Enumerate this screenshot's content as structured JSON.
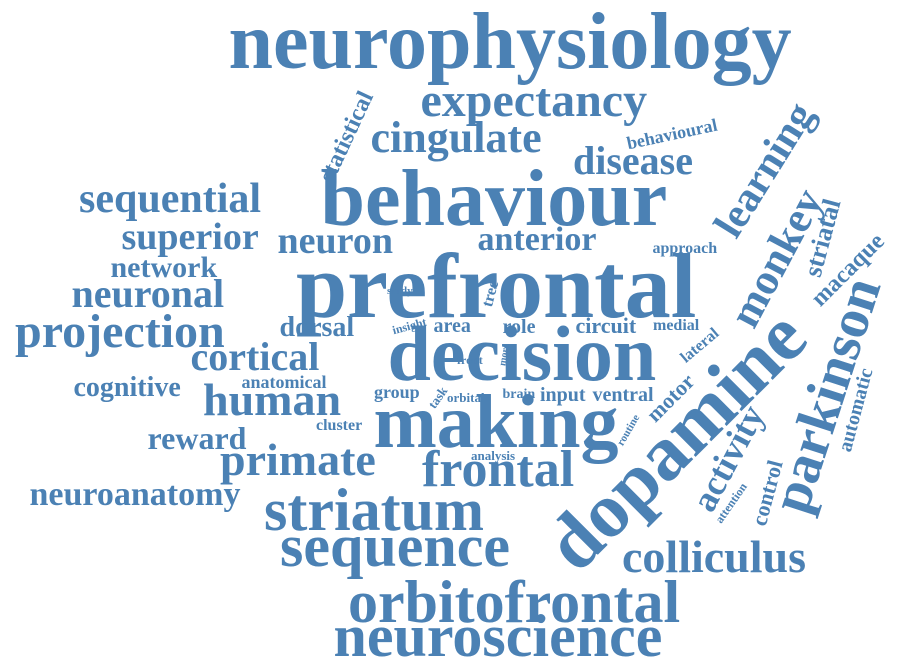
{
  "word_cloud": {
    "color": "#4b81b4",
    "words": [
      "neurophysiology",
      "expectancy",
      "statistical",
      "cingulate",
      "behavioural",
      "disease",
      "learning",
      "behaviour",
      "sequential",
      "monkey",
      "superior",
      "neuron",
      "anterior",
      "approach",
      "striatal",
      "network",
      "prefrontal",
      "macaque",
      "neuronal",
      "study",
      "tree",
      "projection",
      "dorsal",
      "insight",
      "area",
      "role",
      "circuit",
      "medial",
      "decision",
      "parkinson",
      "cortical",
      "front",
      "more",
      "lateral",
      "cognitive",
      "anatomical",
      "group",
      "task",
      "orbital",
      "brain",
      "input",
      "ventral",
      "dopamine",
      "automatic",
      "motor",
      "human",
      "cluster",
      "making",
      "routine",
      "activity",
      "reward",
      "primate",
      "analysis",
      "frontal",
      "control",
      "attention",
      "neuroanatomy",
      "striatum",
      "sequence",
      "colliculus",
      "orbitofrontal",
      "neuroscience"
    ]
  }
}
